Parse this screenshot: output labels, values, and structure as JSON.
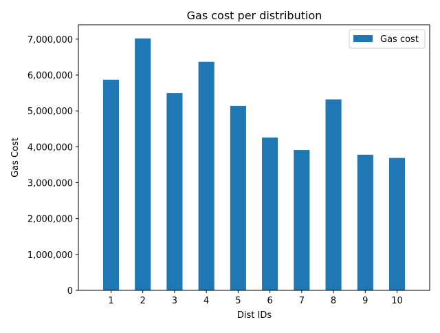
{
  "chart_data": {
    "type": "bar",
    "title": "Gas cost per distribution",
    "xlabel": "Dist IDs",
    "ylabel": "Gas Cost",
    "categories": [
      "1",
      "2",
      "3",
      "4",
      "5",
      "6",
      "7",
      "8",
      "9",
      "10"
    ],
    "series": [
      {
        "name": "Gas cost",
        "color": "#1f77b4",
        "values": [
          5870000,
          7020000,
          5500000,
          6370000,
          5140000,
          4260000,
          3910000,
          5320000,
          3780000,
          3690000
        ]
      }
    ],
    "ylim": [
      0,
      7400000
    ],
    "yticks": [
      0,
      1000000,
      2000000,
      3000000,
      4000000,
      5000000,
      6000000,
      7000000
    ],
    "ytick_labels": [
      "0",
      "1,000,000",
      "2,000,000",
      "3,000,000",
      "4,000,000",
      "5,000,000",
      "6,000,000",
      "7,000,000"
    ],
    "grid": false,
    "legend_position": "top-right"
  }
}
